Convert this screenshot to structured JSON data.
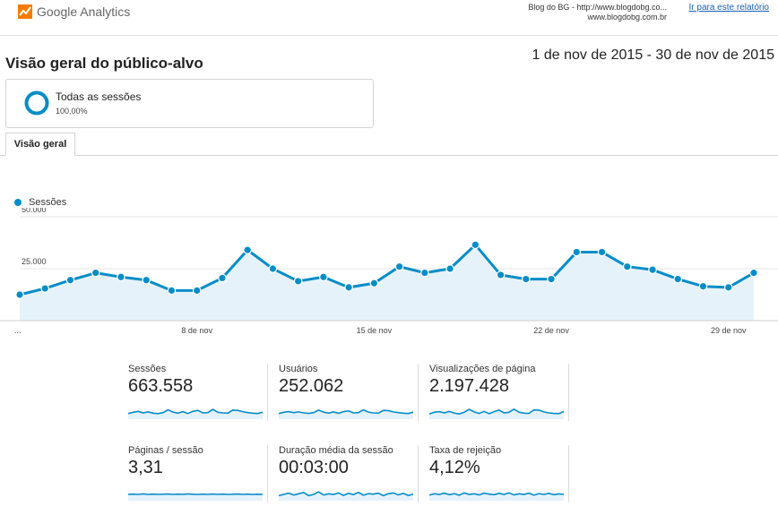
{
  "header": {
    "logo_text": "Google Analytics",
    "site_line1": "Blog do BG - http://www.blogdobg.co...",
    "site_line2": "www.blogdobg.com.br",
    "go_to_report": "Ir para este relatório"
  },
  "page": {
    "title": "Visão geral do público-alvo",
    "date_range": "1 de nov de 2015 - 30 de nov de 2015"
  },
  "segment": {
    "name": "Todas as sessões",
    "percent": "100,00%",
    "share": 1.0
  },
  "tabs": [
    {
      "label": "Visão geral"
    }
  ],
  "colors": {
    "accent": "#058dc7",
    "area_fill": "#e6f2fa",
    "logo_orange": "#f57c00"
  },
  "chart_data": {
    "type": "line",
    "title": "",
    "series": [
      {
        "name": "Sessões",
        "values": [
          12500,
          15500,
          19500,
          23000,
          21000,
          19500,
          14500,
          14500,
          20500,
          34000,
          25000,
          19000,
          21000,
          16000,
          18000,
          26000,
          23000,
          25000,
          36500,
          22000,
          20000,
          20000,
          33000,
          33000,
          26000,
          24500,
          20000,
          16500,
          16000,
          23000
        ]
      }
    ],
    "x": [
      1,
      2,
      3,
      4,
      5,
      6,
      7,
      8,
      9,
      10,
      11,
      12,
      13,
      14,
      15,
      16,
      17,
      18,
      19,
      20,
      21,
      22,
      23,
      24,
      25,
      26,
      27,
      28,
      29,
      30
    ],
    "x_tick_labels": [
      "...",
      "8 de nov",
      "15 de nov",
      "22 de nov",
      "29 de nov"
    ],
    "x_tick_days": [
      1,
      8,
      15,
      22,
      29
    ],
    "y_ticks": [
      "50.000",
      "25.000"
    ],
    "y_tick_values": [
      50000,
      25000
    ],
    "ylim": [
      0,
      50000
    ],
    "legend": "top-left",
    "grid": true
  },
  "metrics": [
    {
      "label": "Sessões",
      "value": "663.558",
      "spark": [
        0.45,
        0.55,
        0.62,
        0.5,
        0.58,
        0.48,
        0.44,
        0.52,
        0.75,
        0.56,
        0.48,
        0.6,
        0.45,
        0.62,
        0.7,
        0.5,
        0.52,
        0.78,
        0.55,
        0.5,
        0.48,
        0.72,
        0.7,
        0.6,
        0.52,
        0.48,
        0.45,
        0.55
      ]
    },
    {
      "label": "Usuários",
      "value": "252.062",
      "spark": [
        0.45,
        0.55,
        0.6,
        0.52,
        0.58,
        0.5,
        0.46,
        0.52,
        0.72,
        0.56,
        0.48,
        0.58,
        0.46,
        0.6,
        0.66,
        0.5,
        0.52,
        0.74,
        0.56,
        0.5,
        0.48,
        0.7,
        0.68,
        0.58,
        0.52,
        0.48,
        0.45,
        0.55
      ]
    },
    {
      "label": "Visualizações de página",
      "value": "2.197.428",
      "spark": [
        0.42,
        0.55,
        0.6,
        0.5,
        0.62,
        0.48,
        0.42,
        0.55,
        0.78,
        0.58,
        0.46,
        0.62,
        0.44,
        0.6,
        0.72,
        0.5,
        0.55,
        0.8,
        0.56,
        0.48,
        0.46,
        0.74,
        0.72,
        0.58,
        0.5,
        0.46,
        0.44,
        0.62
      ]
    },
    {
      "label": "Páginas / sessão",
      "value": "3,31",
      "spark": [
        0.5,
        0.52,
        0.5,
        0.54,
        0.5,
        0.52,
        0.5,
        0.51,
        0.53,
        0.5,
        0.52,
        0.5,
        0.54,
        0.51,
        0.5,
        0.52,
        0.5,
        0.53,
        0.5,
        0.52,
        0.5,
        0.51,
        0.53,
        0.5,
        0.52,
        0.5,
        0.51,
        0.5
      ]
    },
    {
      "label": "Duração média da sessão",
      "value": "00:03:00",
      "spark": [
        0.4,
        0.5,
        0.6,
        0.45,
        0.55,
        0.65,
        0.4,
        0.5,
        0.7,
        0.45,
        0.55,
        0.5,
        0.62,
        0.42,
        0.58,
        0.48,
        0.66,
        0.44,
        0.56,
        0.52,
        0.6,
        0.4,
        0.55,
        0.62,
        0.46,
        0.58,
        0.42,
        0.52
      ]
    },
    {
      "label": "Taxa de rejeição",
      "value": "4,12%",
      "spark": [
        0.45,
        0.55,
        0.5,
        0.6,
        0.48,
        0.56,
        0.44,
        0.62,
        0.5,
        0.55,
        0.46,
        0.6,
        0.52,
        0.48,
        0.58,
        0.5,
        0.62,
        0.46,
        0.55,
        0.5,
        0.6,
        0.44,
        0.56,
        0.5,
        0.58,
        0.48,
        0.54,
        0.5
      ]
    }
  ]
}
